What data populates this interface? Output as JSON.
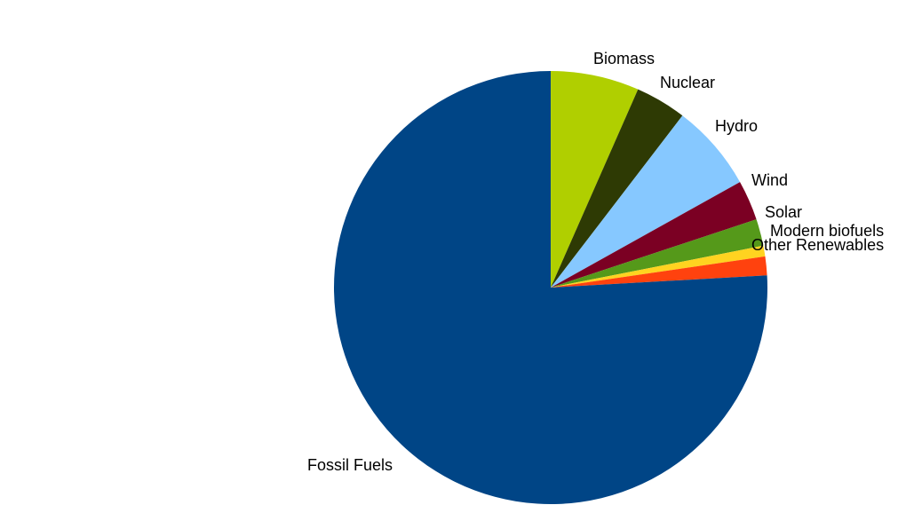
{
  "chart_data": {
    "type": "pie",
    "title": "",
    "start_angle_deg": 0,
    "direction": "clockwise",
    "slices": [
      {
        "label": "Biomass",
        "value": 6.6,
        "color": "#b0cf00"
      },
      {
        "label": "Nuclear",
        "value": 3.8,
        "color": "#2e3a04"
      },
      {
        "label": "Hydro",
        "value": 6.5,
        "color": "#86c8ff"
      },
      {
        "label": "Wind",
        "value": 3.0,
        "color": "#7b0023"
      },
      {
        "label": "Solar",
        "value": 2.0,
        "color": "#55991a"
      },
      {
        "label": "Modern biofuels",
        "value": 0.8,
        "color": "#ffd320"
      },
      {
        "label": "Other Renewables",
        "value": 1.4,
        "color": "#ff420e"
      },
      {
        "label": "Fossil Fuels",
        "value": 75.9,
        "color": "#004586"
      }
    ]
  }
}
